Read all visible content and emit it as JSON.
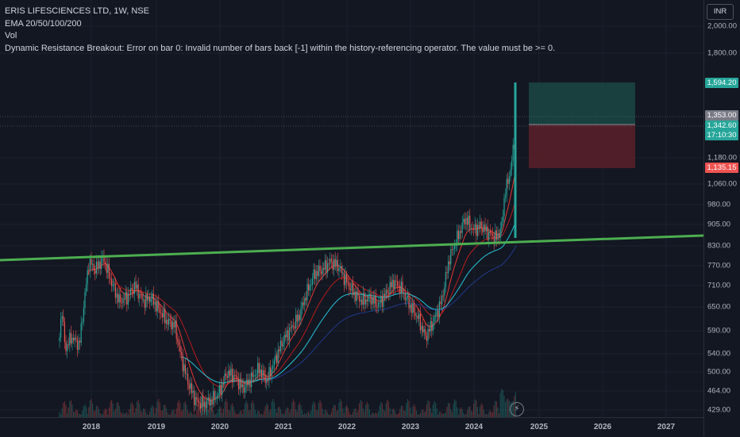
{
  "legend": {
    "symbol": "ERIS LIFESCIENCES LTD, 1W, NSE",
    "ema": "EMA 20/50/100/200",
    "vol": "Vol",
    "error": "Dynamic Resistance Breakout: Error on bar 0: Invalid number of bars back [-1] within the history-referencing operator. The value must be >= 0."
  },
  "currency": "INR",
  "price_axis": {
    "labels": [
      "2,000.00",
      "1,800.00",
      "1,180.00",
      "1,060.00",
      "980.00",
      "905.00",
      "830.00",
      "770.00",
      "710.00",
      "650.00",
      "590.00",
      "540.00",
      "500.00",
      "464.00",
      "429.00"
    ],
    "tags": {
      "target": "1,594.20",
      "last": "1,353.00",
      "current": "1,342.60",
      "countdown": "17:10:30",
      "stop": "1,135.15"
    }
  },
  "time_axis": {
    "labels": [
      "2018",
      "2019",
      "2020",
      "2021",
      "2022",
      "2023",
      "2024",
      "2025",
      "2026",
      "2027"
    ]
  },
  "colors": {
    "background": "#131722",
    "up": "#26a69a",
    "down": "#ef5350",
    "trendline": "#4caf50",
    "ema20": "#e53935",
    "ema50": "#b71c1c",
    "ema100": "#26c6da",
    "ema200": "#1e3a8a",
    "target_zone": "#1b4744",
    "stop_zone": "#5c2029"
  },
  "icons": {
    "replay": "lightning-icon"
  },
  "chart_data": {
    "type": "candlestick",
    "trendline": {
      "from": [
        "2017-06",
        785
      ],
      "to": [
        "2027-06",
        865
      ]
    },
    "position": {
      "entry": 1353.0,
      "target": 1594.2,
      "stop": 1135.15
    },
    "last_price": 1342.6
  }
}
